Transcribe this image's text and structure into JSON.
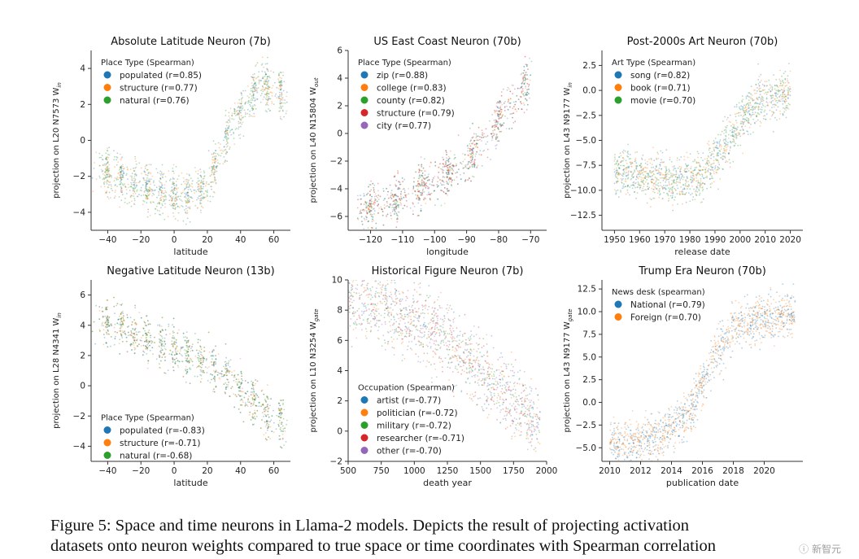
{
  "caption": {
    "line1": "Figure 5: Space and time neurons in Llama-2 models. Depicts the result of projecting activation",
    "line2": "datasets onto neuron weights compared to true space or time coordinates with Spearman correlation"
  },
  "watermark": "ⓘ 新智元",
  "chart_data": [
    {
      "type": "scatter",
      "title": "Absolute Latitude Neuron (7b)",
      "xlabel": "latitude",
      "ylabel": "projection on L20 N7573 W",
      "ylabel_sub": "in",
      "xlim": [
        -50,
        70
      ],
      "ylim": [
        -5,
        5
      ],
      "xticks": [
        -40,
        -20,
        0,
        20,
        40,
        60
      ],
      "yticks": [
        -4,
        -2,
        0,
        2,
        4
      ],
      "legend_title": "Place Type (Spearman)",
      "legend_loc": "top-left",
      "series": [
        {
          "name": "populated",
          "label": "populated  (r=0.85)",
          "color": "#1f77b4"
        },
        {
          "name": "structure",
          "label": "structure (r=0.77)",
          "color": "#ff7f0e"
        },
        {
          "name": "natural",
          "label": "natural  (r=0.76)",
          "color": "#2ca02c"
        }
      ],
      "trend": {
        "kind": "vshape",
        "x": [
          -45,
          -35,
          -10,
          5,
          20,
          35,
          52,
          68
        ],
        "y": [
          -1.5,
          -2,
          -2.8,
          -3.2,
          -2.5,
          1,
          3.2,
          2.5
        ]
      }
    },
    {
      "type": "scatter",
      "title": "US East Coast Neuron (70b)",
      "xlabel": "longitude",
      "ylabel": "projection on L40 N15804 W",
      "ylabel_sub": "out",
      "xlim": [
        -127,
        -65
      ],
      "ylim": [
        -7,
        6
      ],
      "xticks": [
        -120,
        -110,
        -100,
        -90,
        -80,
        -70
      ],
      "yticks": [
        -6,
        -4,
        -2,
        0,
        2,
        4,
        6
      ],
      "legend_title": "Place Type (Spearman)",
      "legend_loc": "top-left",
      "series": [
        {
          "name": "zip",
          "label": "zip (r=0.88)",
          "color": "#1f77b4"
        },
        {
          "name": "college",
          "label": "college (r=0.83)",
          "color": "#ff7f0e"
        },
        {
          "name": "county",
          "label": "county (r=0.82)",
          "color": "#2ca02c"
        },
        {
          "name": "structure",
          "label": "structure (r=0.79)",
          "color": "#d62728"
        },
        {
          "name": "city",
          "label": "city (r=0.77)",
          "color": "#9467bd"
        }
      ],
      "trend": {
        "kind": "line",
        "x": [
          -124,
          -110,
          -100,
          -90,
          -80,
          -70
        ],
        "y": [
          -5.5,
          -4.5,
          -3.5,
          -2,
          1,
          4
        ]
      }
    },
    {
      "type": "scatter",
      "title": "Post-2000s Art Neuron (70b)",
      "xlabel": "release date",
      "ylabel": "projection on L43 N9177 W",
      "ylabel_sub": "in",
      "xlim": [
        1945,
        2025
      ],
      "ylim": [
        -14,
        4
      ],
      "xticks": [
        1950,
        1960,
        1970,
        1980,
        1990,
        2000,
        2010,
        2020
      ],
      "yticks": [
        -12.5,
        -10.0,
        -7.5,
        -5.0,
        -2.5,
        0.0,
        2.5
      ],
      "legend_title": "Art Type (Spearman)",
      "legend_loc": "top-left",
      "series": [
        {
          "name": "song",
          "label": "song (r=0.82)",
          "color": "#1f77b4"
        },
        {
          "name": "book",
          "label": "book (r=0.71)",
          "color": "#ff7f0e"
        },
        {
          "name": "movie",
          "label": "movie (r=0.70)",
          "color": "#2ca02c"
        }
      ],
      "trend": {
        "kind": "sigmoid",
        "x": [
          1950,
          1970,
          1985,
          1995,
          2005,
          2020
        ],
        "y": [
          -8,
          -9,
          -8.5,
          -5,
          -1.5,
          0
        ]
      }
    },
    {
      "type": "scatter",
      "title": "Negative Latitude Neuron (13b)",
      "xlabel": "latitude",
      "ylabel": "projection on L28 N4341 W",
      "ylabel_sub": "in",
      "xlim": [
        -50,
        70
      ],
      "ylim": [
        -5,
        7
      ],
      "xticks": [
        -40,
        -20,
        0,
        20,
        40,
        60
      ],
      "yticks": [
        -4,
        -2,
        0,
        2,
        4,
        6
      ],
      "legend_title": "Place Type (Spearman)",
      "legend_loc": "bottom-left",
      "series": [
        {
          "name": "populated",
          "label": "populated  (r=-0.83)",
          "color": "#1f77b4"
        },
        {
          "name": "structure",
          "label": "structure (r=-0.71)",
          "color": "#ff7f0e"
        },
        {
          "name": "natural",
          "label": "natural  (r=-0.68)",
          "color": "#2ca02c"
        }
      ],
      "trend": {
        "kind": "line",
        "x": [
          -45,
          -35,
          -10,
          10,
          30,
          45,
          55,
          68
        ],
        "y": [
          4.3,
          4.2,
          2.8,
          2,
          1,
          -0.8,
          -1.8,
          -2.5
        ]
      }
    },
    {
      "type": "scatter",
      "title": "Historical Figure Neuron (7b)",
      "xlabel": "death year",
      "ylabel": "projection on L10 N3254 W",
      "ylabel_sub": "gate",
      "xlim": [
        500,
        2000
      ],
      "ylim": [
        -2,
        10
      ],
      "xticks": [
        500,
        750,
        1000,
        1250,
        1500,
        1750,
        2000
      ],
      "yticks": [
        -2,
        0,
        2,
        4,
        6,
        8,
        10
      ],
      "legend_title": "Occupation (Spearman)",
      "legend_loc": "bottom-left",
      "series": [
        {
          "name": "artist",
          "label": "artist  (r=-0.77)",
          "color": "#1f77b4"
        },
        {
          "name": "politician",
          "label": "politician (r=-0.72)",
          "color": "#ff7f0e"
        },
        {
          "name": "military",
          "label": "military (r=-0.72)",
          "color": "#2ca02c"
        },
        {
          "name": "researcher",
          "label": "researcher (r=-0.71)",
          "color": "#d62728"
        },
        {
          "name": "other",
          "label": "other (r=-0.70)",
          "color": "#9467bd"
        }
      ],
      "trend": {
        "kind": "line",
        "x": [
          500,
          1000,
          1250,
          1500,
          1750,
          1950
        ],
        "y": [
          9,
          7.5,
          6,
          4,
          2,
          0.5
        ]
      }
    },
    {
      "type": "scatter",
      "title": "Trump Era Neuron (70b)",
      "xlabel": "publication date",
      "ylabel": "projection on L43 N9177 W",
      "ylabel_sub": "gate",
      "xlim": [
        2009.5,
        2022.5
      ],
      "ylim": [
        -6.5,
        13.5
      ],
      "xticks": [
        2010,
        2012,
        2014,
        2016,
        2018,
        2020
      ],
      "yticks": [
        -5.0,
        -2.5,
        0.0,
        2.5,
        5.0,
        7.5,
        10.0,
        12.5
      ],
      "legend_title": "News desk (spearman)",
      "legend_loc": "top-left",
      "series": [
        {
          "name": "National",
          "label": "National (r=0.79)",
          "color": "#1f77b4"
        },
        {
          "name": "Foreign",
          "label": "Foreign (r=0.70)",
          "color": "#ff7f0e"
        }
      ],
      "trend": {
        "kind": "sigmoid",
        "x": [
          2010,
          2013,
          2015,
          2016.5,
          2018,
          2022
        ],
        "y": [
          -4.5,
          -4,
          -1.5,
          4,
          8.5,
          10
        ]
      }
    }
  ]
}
